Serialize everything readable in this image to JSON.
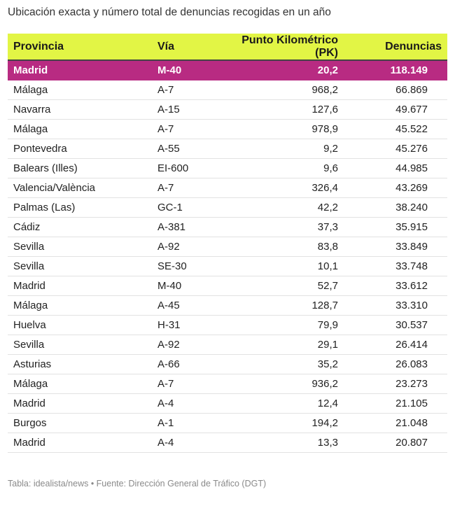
{
  "title": "Ubicación exacta y número total de denuncias recogidas en un año",
  "footer": "Tabla: idealista/news • Fuente: Dirección General de Tráfico (DGT)",
  "colors": {
    "header_bg": "#e2f545",
    "highlight_bg": "#b82b82"
  },
  "chart_data": {
    "type": "table",
    "columns": [
      "Provincia",
      "Vía",
      "Punto Kilométrico (PK)",
      "Denuncias"
    ],
    "rows": [
      [
        "Madrid",
        "M-40",
        "20,2",
        "118.149"
      ],
      [
        "Málaga",
        "A-7",
        "968,2",
        "66.869"
      ],
      [
        "Navarra",
        "A-15",
        "127,6",
        "49.677"
      ],
      [
        "Málaga",
        "A-7",
        "978,9",
        "45.522"
      ],
      [
        "Pontevedra",
        "A-55",
        "9,2",
        "45.276"
      ],
      [
        "Balears (Illes)",
        "EI-600",
        "9,6",
        "44.985"
      ],
      [
        "Valencia/València",
        "A-7",
        "326,4",
        "43.269"
      ],
      [
        "Palmas (Las)",
        "GC-1",
        "42,2",
        "38.240"
      ],
      [
        "Cádiz",
        "A-381",
        "37,3",
        "35.915"
      ],
      [
        "Sevilla",
        "A-92",
        "83,8",
        "33.849"
      ],
      [
        "Sevilla",
        "SE-30",
        "10,1",
        "33.748"
      ],
      [
        "Madrid",
        "M-40",
        "52,7",
        "33.612"
      ],
      [
        "Málaga",
        "A-45",
        "128,7",
        "33.310"
      ],
      [
        "Huelva",
        "H-31",
        "79,9",
        "30.537"
      ],
      [
        "Sevilla",
        "A-92",
        "29,1",
        "26.414"
      ],
      [
        "Asturias",
        "A-66",
        "35,2",
        "26.083"
      ],
      [
        "Málaga",
        "A-7",
        "936,2",
        "23.273"
      ],
      [
        "Madrid",
        "A-4",
        "12,4",
        "21.105"
      ],
      [
        "Burgos",
        "A-1",
        "194,2",
        "21.048"
      ],
      [
        "Madrid",
        "A-4",
        "13,3",
        "20.807"
      ]
    ],
    "highlighted_row": 0
  }
}
